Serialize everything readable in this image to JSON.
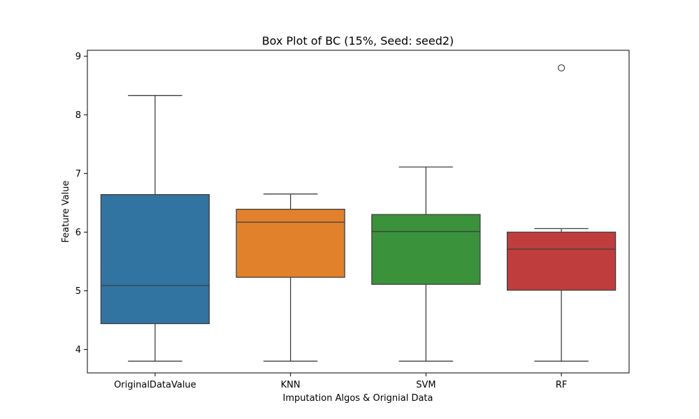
{
  "chart_data": {
    "type": "box",
    "title": "Box Plot of BC (15%, Seed: seed2)",
    "xlabel": "Imputation Algos & Orignial Data",
    "ylabel": "Feature Value",
    "ylim": [
      3.6,
      9.1
    ],
    "yticks": [
      "4",
      "5",
      "6",
      "7",
      "8",
      "9"
    ],
    "grid": false,
    "categories": [
      "OriginalDataValue",
      "KNN",
      "SVM",
      "RF"
    ],
    "boxes": [
      {
        "name": "OriginalDataValue",
        "color": "#3274a1",
        "whisker_low": 3.8,
        "q1": 4.44,
        "median": 5.09,
        "q3": 6.64,
        "whisker_high": 8.33,
        "outliers": []
      },
      {
        "name": "KNN",
        "color": "#e1812c",
        "whisker_low": 3.8,
        "q1": 5.23,
        "median": 6.17,
        "q3": 6.39,
        "whisker_high": 6.65,
        "outliers": []
      },
      {
        "name": "SVM",
        "color": "#3a923a",
        "whisker_low": 3.8,
        "q1": 5.11,
        "median": 6.01,
        "q3": 6.3,
        "whisker_high": 7.11,
        "outliers": []
      },
      {
        "name": "RF",
        "color": "#c03d3e",
        "whisker_low": 3.8,
        "q1": 5.01,
        "median": 5.71,
        "q3": 6.0,
        "whisker_high": 6.06,
        "outliers": [
          8.8
        ]
      }
    ]
  }
}
